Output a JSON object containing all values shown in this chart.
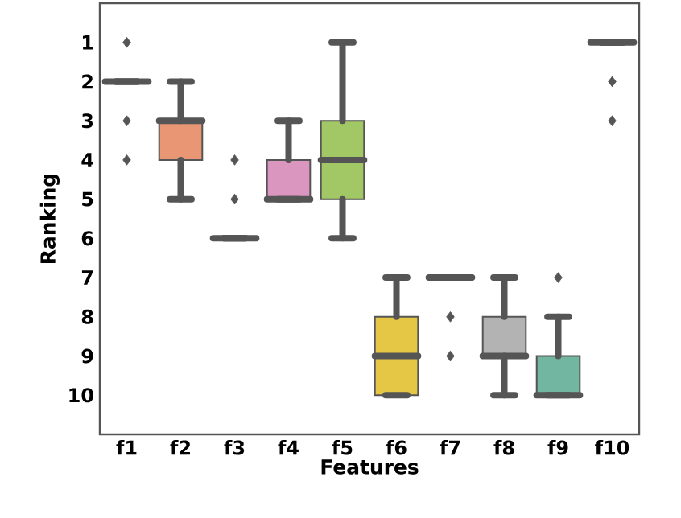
{
  "chart_data": {
    "type": "box",
    "xlabel": "Features",
    "ylabel": "Ranking",
    "categories": [
      "f1",
      "f2",
      "f3",
      "f4",
      "f5",
      "f6",
      "f7",
      "f8",
      "f9",
      "f10"
    ],
    "colors": [
      null,
      "#e99675",
      null,
      "#db96c0",
      "#a2c865",
      "#e5c645",
      null,
      "#b3b3b3",
      "#72b6a1",
      null
    ],
    "boxes": [
      {
        "low": 2,
        "q1": 2,
        "median": 2,
        "q3": 2,
        "high": 2,
        "outliers": [
          1,
          3,
          4
        ]
      },
      {
        "low": 2,
        "q1": 3,
        "median": 3,
        "q3": 4,
        "high": 5
      },
      {
        "low": 6,
        "q1": 6,
        "median": 6,
        "q3": 6,
        "high": 6,
        "outliers": [
          4,
          5
        ]
      },
      {
        "low": 3,
        "q1": 4,
        "median": 5,
        "q3": 5,
        "high": 5
      },
      {
        "low": 1,
        "q1": 3,
        "median": 4,
        "q3": 5,
        "high": 6
      },
      {
        "low": 7,
        "q1": 8,
        "median": 9,
        "q3": 10,
        "high": 10
      },
      {
        "low": 7,
        "q1": 7,
        "median": 7,
        "q3": 7,
        "high": 7,
        "outliers": [
          8,
          9
        ]
      },
      {
        "low": 7,
        "q1": 8,
        "median": 9,
        "q3": 9,
        "high": 10
      },
      {
        "low": 8,
        "q1": 9,
        "median": 10,
        "q3": 10,
        "high": 10,
        "outliers": [
          7
        ]
      },
      {
        "low": 1,
        "q1": 1,
        "median": 1,
        "q3": 1,
        "high": 1,
        "outliers": [
          2,
          3
        ]
      }
    ],
    "ylim": [
      11,
      0
    ],
    "yticks": [
      1,
      2,
      3,
      4,
      5,
      6,
      7,
      8,
      9,
      10
    ]
  }
}
